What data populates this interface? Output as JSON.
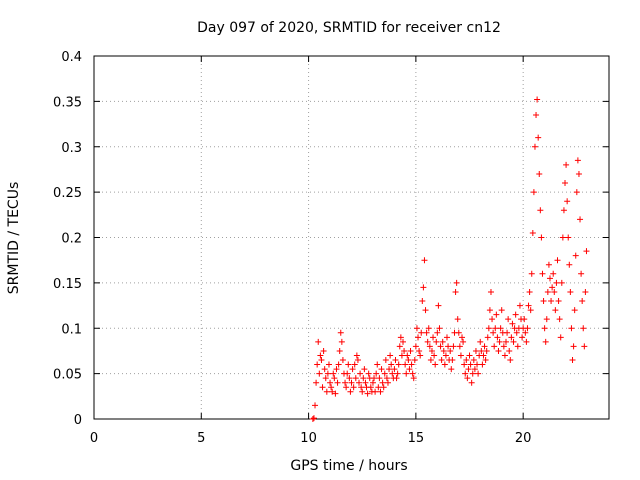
{
  "chart_data": {
    "type": "scatter",
    "title": "Day 097 of 2020, SRMTID for receiver cn12",
    "xlabel": "GPS time / hours",
    "ylabel": "SRMTID / TECUs",
    "xlim": [
      0,
      24
    ],
    "ylim": [
      0,
      0.4
    ],
    "xticks": [
      0,
      5,
      10,
      15,
      20
    ],
    "xtick_labels": [
      "0",
      "5",
      "10",
      "15",
      "20"
    ],
    "yticks": [
      0,
      0.05,
      0.1,
      0.15,
      0.2,
      0.25,
      0.3,
      0.35,
      0.4
    ],
    "ytick_labels": [
      "0",
      "0.05",
      "0.1",
      "0.15",
      "0.2",
      "0.25",
      "0.3",
      "0.35",
      "0.4"
    ],
    "grid": true,
    "marker": "plus",
    "series": [
      {
        "name": "SRMTID",
        "color": "#ff0000",
        "points": [
          [
            10.2,
            0.0
          ],
          [
            10.25,
            0.001
          ],
          [
            10.3,
            0.015
          ],
          [
            10.35,
            0.04
          ],
          [
            10.4,
            0.06
          ],
          [
            10.45,
            0.085
          ],
          [
            10.5,
            0.05
          ],
          [
            10.55,
            0.07
          ],
          [
            10.6,
            0.065
          ],
          [
            10.65,
            0.035
          ],
          [
            10.7,
            0.075
          ],
          [
            10.75,
            0.055
          ],
          [
            10.8,
            0.045
          ],
          [
            10.85,
            0.03
          ],
          [
            10.9,
            0.05
          ],
          [
            10.95,
            0.06
          ],
          [
            11.0,
            0.04
          ],
          [
            11.05,
            0.035
          ],
          [
            11.1,
            0.03
          ],
          [
            11.15,
            0.05
          ],
          [
            11.2,
            0.045
          ],
          [
            11.25,
            0.028
          ],
          [
            11.3,
            0.055
          ],
          [
            11.35,
            0.04
          ],
          [
            11.4,
            0.06
          ],
          [
            11.45,
            0.075
          ],
          [
            11.5,
            0.095
          ],
          [
            11.55,
            0.085
          ],
          [
            11.6,
            0.065
          ],
          [
            11.65,
            0.05
          ],
          [
            11.7,
            0.04
          ],
          [
            11.75,
            0.035
          ],
          [
            11.8,
            0.05
          ],
          [
            11.85,
            0.06
          ],
          [
            11.9,
            0.045
          ],
          [
            11.95,
            0.03
          ],
          [
            12.0,
            0.04
          ],
          [
            12.05,
            0.055
          ],
          [
            12.1,
            0.035
          ],
          [
            12.15,
            0.06
          ],
          [
            12.2,
            0.045
          ],
          [
            12.25,
            0.07
          ],
          [
            12.3,
            0.065
          ],
          [
            12.35,
            0.04
          ],
          [
            12.4,
            0.05
          ],
          [
            12.45,
            0.035
          ],
          [
            12.5,
            0.03
          ],
          [
            12.55,
            0.045
          ],
          [
            12.6,
            0.055
          ],
          [
            12.65,
            0.04
          ],
          [
            12.7,
            0.035
          ],
          [
            12.75,
            0.028
          ],
          [
            12.8,
            0.05
          ],
          [
            12.85,
            0.045
          ],
          [
            12.9,
            0.035
          ],
          [
            12.95,
            0.03
          ],
          [
            13.0,
            0.04
          ],
          [
            13.05,
            0.045
          ],
          [
            13.1,
            0.03
          ],
          [
            13.15,
            0.05
          ],
          [
            13.2,
            0.06
          ],
          [
            13.25,
            0.035
          ],
          [
            13.3,
            0.045
          ],
          [
            13.35,
            0.03
          ],
          [
            13.4,
            0.055
          ],
          [
            13.45,
            0.04
          ],
          [
            13.5,
            0.035
          ],
          [
            13.55,
            0.05
          ],
          [
            13.6,
            0.065
          ],
          [
            13.65,
            0.045
          ],
          [
            13.7,
            0.04
          ],
          [
            13.75,
            0.055
          ],
          [
            13.8,
            0.07
          ],
          [
            13.85,
            0.06
          ],
          [
            13.9,
            0.05
          ],
          [
            13.95,
            0.045
          ],
          [
            14.0,
            0.055
          ],
          [
            14.05,
            0.065
          ],
          [
            14.1,
            0.045
          ],
          [
            14.15,
            0.05
          ],
          [
            14.2,
            0.06
          ],
          [
            14.25,
            0.08
          ],
          [
            14.3,
            0.09
          ],
          [
            14.35,
            0.07
          ],
          [
            14.4,
            0.085
          ],
          [
            14.45,
            0.075
          ],
          [
            14.5,
            0.06
          ],
          [
            14.55,
            0.05
          ],
          [
            14.6,
            0.07
          ],
          [
            14.65,
            0.065
          ],
          [
            14.7,
            0.055
          ],
          [
            14.75,
            0.075
          ],
          [
            14.8,
            0.06
          ],
          [
            14.85,
            0.05
          ],
          [
            14.9,
            0.045
          ],
          [
            14.95,
            0.065
          ],
          [
            15.0,
            0.08
          ],
          [
            15.05,
            0.1
          ],
          [
            15.1,
            0.09
          ],
          [
            15.15,
            0.075
          ],
          [
            15.2,
            0.07
          ],
          [
            15.25,
            0.095
          ],
          [
            15.3,
            0.13
          ],
          [
            15.35,
            0.145
          ],
          [
            15.4,
            0.175
          ],
          [
            15.45,
            0.12
          ],
          [
            15.5,
            0.095
          ],
          [
            15.55,
            0.085
          ],
          [
            15.6,
            0.1
          ],
          [
            15.65,
            0.08
          ],
          [
            15.7,
            0.065
          ],
          [
            15.75,
            0.075
          ],
          [
            15.8,
            0.09
          ],
          [
            15.85,
            0.07
          ],
          [
            15.9,
            0.06
          ],
          [
            15.95,
            0.085
          ],
          [
            16.0,
            0.095
          ],
          [
            16.05,
            0.125
          ],
          [
            16.1,
            0.1
          ],
          [
            16.15,
            0.08
          ],
          [
            16.2,
            0.065
          ],
          [
            16.25,
            0.085
          ],
          [
            16.3,
            0.075
          ],
          [
            16.35,
            0.06
          ],
          [
            16.4,
            0.07
          ],
          [
            16.45,
            0.09
          ],
          [
            16.5,
            0.08
          ],
          [
            16.55,
            0.065
          ],
          [
            16.6,
            0.075
          ],
          [
            16.65,
            0.055
          ],
          [
            16.7,
            0.065
          ],
          [
            16.75,
            0.08
          ],
          [
            16.8,
            0.095
          ],
          [
            16.85,
            0.14
          ],
          [
            16.9,
            0.15
          ],
          [
            16.95,
            0.11
          ],
          [
            17.0,
            0.095
          ],
          [
            17.05,
            0.08
          ],
          [
            17.1,
            0.07
          ],
          [
            17.15,
            0.09
          ],
          [
            17.2,
            0.085
          ],
          [
            17.25,
            0.06
          ],
          [
            17.3,
            0.05
          ],
          [
            17.35,
            0.065
          ],
          [
            17.4,
            0.045
          ],
          [
            17.45,
            0.055
          ],
          [
            17.5,
            0.07
          ],
          [
            17.55,
            0.06
          ],
          [
            17.6,
            0.04
          ],
          [
            17.65,
            0.05
          ],
          [
            17.7,
            0.065
          ],
          [
            17.75,
            0.055
          ],
          [
            17.8,
            0.075
          ],
          [
            17.85,
            0.06
          ],
          [
            17.9,
            0.05
          ],
          [
            17.95,
            0.07
          ],
          [
            18.0,
            0.085
          ],
          [
            18.05,
            0.075
          ],
          [
            18.1,
            0.06
          ],
          [
            18.15,
            0.07
          ],
          [
            18.2,
            0.08
          ],
          [
            18.25,
            0.065
          ],
          [
            18.3,
            0.075
          ],
          [
            18.35,
            0.09
          ],
          [
            18.4,
            0.1
          ],
          [
            18.45,
            0.12
          ],
          [
            18.5,
            0.14
          ],
          [
            18.55,
            0.11
          ],
          [
            18.6,
            0.095
          ],
          [
            18.65,
            0.08
          ],
          [
            18.7,
            0.1
          ],
          [
            18.75,
            0.115
          ],
          [
            18.8,
            0.09
          ],
          [
            18.85,
            0.075
          ],
          [
            18.9,
            0.085
          ],
          [
            18.95,
            0.1
          ],
          [
            19.0,
            0.12
          ],
          [
            19.05,
            0.095
          ],
          [
            19.1,
            0.08
          ],
          [
            19.15,
            0.07
          ],
          [
            19.2,
            0.085
          ],
          [
            19.25,
            0.095
          ],
          [
            19.3,
            0.11
          ],
          [
            19.35,
            0.075
          ],
          [
            19.4,
            0.065
          ],
          [
            19.45,
            0.09
          ],
          [
            19.5,
            0.105
          ],
          [
            19.55,
            0.085
          ],
          [
            19.6,
            0.1
          ],
          [
            19.65,
            0.115
          ],
          [
            19.7,
            0.095
          ],
          [
            19.75,
            0.08
          ],
          [
            19.8,
            0.1
          ],
          [
            19.85,
            0.125
          ],
          [
            19.9,
            0.11
          ],
          [
            19.95,
            0.09
          ],
          [
            20.0,
            0.1
          ],
          [
            20.05,
            0.11
          ],
          [
            20.1,
            0.095
          ],
          [
            20.15,
            0.085
          ],
          [
            20.2,
            0.1
          ],
          [
            20.25,
            0.125
          ],
          [
            20.3,
            0.14
          ],
          [
            20.35,
            0.12
          ],
          [
            20.4,
            0.16
          ],
          [
            20.45,
            0.205
          ],
          [
            20.5,
            0.25
          ],
          [
            20.55,
            0.3
          ],
          [
            20.6,
            0.335
          ],
          [
            20.65,
            0.352
          ],
          [
            20.7,
            0.31
          ],
          [
            20.75,
            0.27
          ],
          [
            20.8,
            0.23
          ],
          [
            20.85,
            0.2
          ],
          [
            20.9,
            0.16
          ],
          [
            20.95,
            0.13
          ],
          [
            21.0,
            0.1
          ],
          [
            21.05,
            0.085
          ],
          [
            21.1,
            0.11
          ],
          [
            21.15,
            0.14
          ],
          [
            21.2,
            0.17
          ],
          [
            21.25,
            0.155
          ],
          [
            21.3,
            0.13
          ],
          [
            21.35,
            0.145
          ],
          [
            21.4,
            0.16
          ],
          [
            21.45,
            0.14
          ],
          [
            21.5,
            0.12
          ],
          [
            21.55,
            0.15
          ],
          [
            21.6,
            0.175
          ],
          [
            21.65,
            0.13
          ],
          [
            21.7,
            0.11
          ],
          [
            21.75,
            0.09
          ],
          [
            21.8,
            0.15
          ],
          [
            21.85,
            0.2
          ],
          [
            21.9,
            0.23
          ],
          [
            21.95,
            0.26
          ],
          [
            22.0,
            0.28
          ],
          [
            22.05,
            0.24
          ],
          [
            22.1,
            0.2
          ],
          [
            22.15,
            0.17
          ],
          [
            22.2,
            0.14
          ],
          [
            22.25,
            0.1
          ],
          [
            22.3,
            0.065
          ],
          [
            22.35,
            0.08
          ],
          [
            22.4,
            0.12
          ],
          [
            22.45,
            0.18
          ],
          [
            22.5,
            0.25
          ],
          [
            22.55,
            0.285
          ],
          [
            22.6,
            0.27
          ],
          [
            22.65,
            0.22
          ],
          [
            22.7,
            0.16
          ],
          [
            22.75,
            0.13
          ],
          [
            22.8,
            0.1
          ],
          [
            22.85,
            0.08
          ],
          [
            22.9,
            0.14
          ],
          [
            22.95,
            0.185
          ]
        ]
      }
    ]
  }
}
